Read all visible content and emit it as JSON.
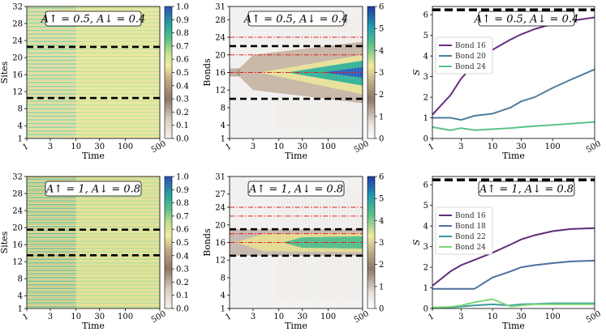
{
  "chart_data": [
    {
      "type": "heatmap",
      "panel": "top-left",
      "annotation": "A↑ = 0.5, A↓ = 0.4",
      "xlabel": "Time",
      "ylabel": "Sites",
      "xscale": "log",
      "xticks": [
        "1",
        "3",
        "10",
        "30",
        "100",
        "500"
      ],
      "yticks": [
        "1",
        "4",
        "8",
        "12",
        "16",
        "20",
        "24",
        "28",
        "32"
      ],
      "colorbar_ticks": [
        "0.0",
        "0.1",
        "0.2",
        "0.3",
        "0.4",
        "0.5",
        "0.6",
        "0.7",
        "0.8",
        "0.9",
        "1.0"
      ],
      "colorbar_range": [
        0,
        1
      ],
      "dashed_lines_y": [
        22.5,
        10.5
      ]
    },
    {
      "type": "heatmap",
      "panel": "top-middle",
      "annotation": "A↑ = 0.5, A↓ = 0.4",
      "xlabel": "Time",
      "ylabel": "Bonds",
      "xscale": "log",
      "xticks": [
        "1",
        "3",
        "10",
        "30",
        "100",
        "500"
      ],
      "yticks": [
        "1",
        "4",
        "8",
        "12",
        "16",
        "20",
        "24",
        "28",
        "31"
      ],
      "colorbar_ticks": [
        "0",
        "1",
        "2",
        "3",
        "4",
        "5",
        "6"
      ],
      "colorbar_range": [
        0,
        6
      ],
      "black_dashed_y": [
        22,
        10
      ],
      "red_dashdot_y": [
        24,
        20,
        16
      ]
    },
    {
      "type": "line",
      "panel": "top-right",
      "annotation": "A↑ = 0.5, A↓ = 0.4",
      "xlabel": "Time",
      "ylabel": "S",
      "xscale": "log",
      "xticks": [
        "1",
        "3",
        "10",
        "30",
        "100",
        "500"
      ],
      "yticks": [
        "0",
        "1",
        "2",
        "3",
        "4",
        "5",
        "6"
      ],
      "ylim": [
        0,
        6.4
      ],
      "reference_line_y": 6.24,
      "legend_position": "upper-left",
      "x": [
        1,
        2,
        3,
        5,
        10,
        20,
        30,
        50,
        100,
        200,
        500
      ],
      "series": [
        {
          "name": "Bond 16",
          "color": "#6a2c7e",
          "values": [
            1.15,
            2.1,
            2.9,
            3.6,
            4.3,
            4.8,
            5.05,
            5.3,
            5.55,
            5.7,
            5.87
          ]
        },
        {
          "name": "Bond 20",
          "color": "#4e7f9e",
          "values": [
            1.0,
            1.0,
            0.9,
            1.1,
            1.2,
            1.5,
            1.8,
            2.0,
            2.45,
            2.85,
            3.35
          ]
        },
        {
          "name": "Bond 24",
          "color": "#5cc28a",
          "values": [
            0.55,
            0.4,
            0.5,
            0.4,
            0.45,
            0.5,
            0.55,
            0.6,
            0.65,
            0.72,
            0.8
          ]
        }
      ]
    },
    {
      "type": "heatmap",
      "panel": "bottom-left",
      "annotation": "A↑ = 1, A↓ = 0.8",
      "xlabel": "Time",
      "ylabel": "Sites",
      "xscale": "log",
      "xticks": [
        "1",
        "3",
        "10",
        "30",
        "100",
        "500"
      ],
      "yticks": [
        "1",
        "4",
        "8",
        "12",
        "16",
        "20",
        "24",
        "28",
        "32"
      ],
      "colorbar_ticks": [
        "0.0",
        "0.1",
        "0.2",
        "0.3",
        "0.4",
        "0.5",
        "0.6",
        "0.7",
        "0.8",
        "0.9",
        "1.0"
      ],
      "colorbar_range": [
        0,
        1
      ],
      "dashed_lines_y": [
        19.5,
        13.5
      ]
    },
    {
      "type": "heatmap",
      "panel": "bottom-middle",
      "annotation": "A↑ = 1, A↓ = 0.8",
      "xlabel": "Time",
      "ylabel": "Bonds",
      "xscale": "log",
      "xticks": [
        "1",
        "3",
        "10",
        "30",
        "100",
        "500"
      ],
      "yticks": [
        "1",
        "4",
        "8",
        "12",
        "16",
        "20",
        "24",
        "27",
        "31"
      ],
      "colorbar_ticks": [
        "0",
        "1",
        "2",
        "3",
        "4",
        "5",
        "6"
      ],
      "colorbar_range": [
        0,
        6
      ],
      "black_dashed_y": [
        19,
        13
      ],
      "red_dashdot_y": [
        24,
        22,
        18,
        16
      ]
    },
    {
      "type": "line",
      "panel": "bottom-right",
      "annotation": "A↑ = 1, A↓ = 0.8",
      "xlabel": "Time",
      "ylabel": "S",
      "xscale": "log",
      "xticks": [
        "1",
        "3",
        "10",
        "30",
        "100",
        "500"
      ],
      "yticks": [
        "0",
        "1",
        "2",
        "3",
        "4",
        "5",
        "6"
      ],
      "ylim": [
        0,
        6.4
      ],
      "reference_line_y": 6.24,
      "legend_position": "upper-left",
      "x": [
        1,
        2,
        3,
        5,
        10,
        20,
        30,
        50,
        100,
        200,
        500
      ],
      "series": [
        {
          "name": "Bond 16",
          "color": "#5c2d7a",
          "values": [
            1.1,
            1.8,
            2.1,
            2.35,
            2.7,
            3.1,
            3.35,
            3.55,
            3.75,
            3.85,
            3.9
          ]
        },
        {
          "name": "Bond 18",
          "color": "#4f6fa0",
          "values": [
            0.95,
            0.95,
            0.95,
            0.95,
            1.5,
            1.8,
            2.0,
            2.1,
            2.2,
            2.28,
            2.32
          ]
        },
        {
          "name": "Bond 22",
          "color": "#3b9aa0",
          "values": [
            0.02,
            0.05,
            0.1,
            0.15,
            0.2,
            0.15,
            0.2,
            0.22,
            0.25,
            0.25,
            0.25
          ]
        },
        {
          "name": "Bond 24",
          "color": "#7fd87a",
          "values": [
            0.05,
            0.08,
            0.15,
            0.3,
            0.45,
            0.1,
            0.15,
            0.2,
            0.2,
            0.2,
            0.2
          ]
        }
      ]
    }
  ]
}
